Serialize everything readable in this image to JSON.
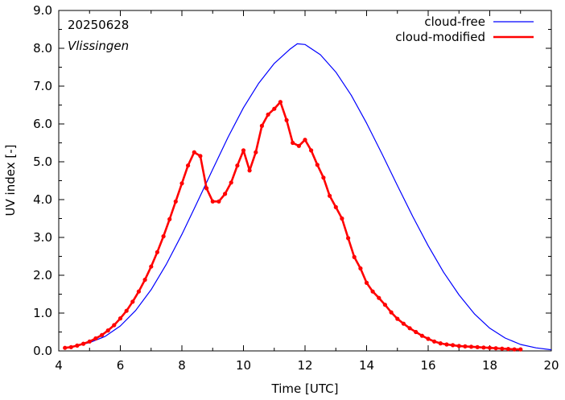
{
  "chart_data": {
    "type": "line",
    "xlabel": "Time  [UTC]",
    "ylabel": "UV index  [-]",
    "xlim": [
      4,
      20
    ],
    "ylim": [
      0,
      9
    ],
    "x_ticks": [
      4,
      6,
      8,
      10,
      12,
      14,
      16,
      18,
      20
    ],
    "y_ticks": [
      0.0,
      1.0,
      2.0,
      3.0,
      4.0,
      5.0,
      6.0,
      7.0,
      8.0,
      9.0
    ],
    "x_tick_labels": [
      "4",
      "6",
      "8",
      "10",
      "12",
      "14",
      "16",
      "18",
      "20"
    ],
    "y_tick_labels": [
      "0.0",
      "1.0",
      "2.0",
      "3.0",
      "4.0",
      "5.0",
      "6.0",
      "7.0",
      "8.0",
      "9.0"
    ],
    "annotations": [
      "20250628",
      "Vlissingen"
    ],
    "legend_position": "top-right",
    "grid": false,
    "series": [
      {
        "name": "cloud-free",
        "color": "#0000ff",
        "markers": false,
        "x": [
          4.2,
          4.5,
          5.0,
          5.5,
          6.0,
          6.5,
          7.0,
          7.5,
          8.0,
          8.5,
          9.0,
          9.5,
          10.0,
          10.5,
          11.0,
          11.5,
          11.75,
          12.0,
          12.5,
          13.0,
          13.5,
          14.0,
          14.5,
          15.0,
          15.5,
          16.0,
          16.5,
          17.0,
          17.5,
          18.0,
          18.5,
          19.0,
          19.5,
          20.0
        ],
        "y": [
          0.08,
          0.12,
          0.22,
          0.38,
          0.66,
          1.07,
          1.62,
          2.3,
          3.08,
          3.93,
          4.8,
          5.65,
          6.43,
          7.08,
          7.6,
          7.97,
          8.12,
          8.1,
          7.83,
          7.37,
          6.76,
          6.02,
          5.21,
          4.37,
          3.55,
          2.78,
          2.08,
          1.48,
          0.98,
          0.6,
          0.34,
          0.17,
          0.08,
          0.03
        ]
      },
      {
        "name": "cloud-modified",
        "color": "#ff0000",
        "markers": true,
        "x": [
          4.2,
          4.4,
          4.6,
          4.8,
          5.0,
          5.2,
          5.4,
          5.6,
          5.8,
          6.0,
          6.2,
          6.4,
          6.6,
          6.8,
          7.0,
          7.2,
          7.4,
          7.6,
          7.8,
          8.0,
          8.2,
          8.4,
          8.6,
          8.8,
          9.0,
          9.2,
          9.4,
          9.6,
          9.8,
          10.0,
          10.2,
          10.4,
          10.6,
          10.8,
          11.0,
          11.2,
          11.4,
          11.6,
          11.8,
          12.0,
          12.2,
          12.4,
          12.6,
          12.8,
          13.0,
          13.2,
          13.4,
          13.6,
          13.8,
          14.0,
          14.2,
          14.4,
          14.6,
          14.8,
          15.0,
          15.2,
          15.4,
          15.6,
          15.8,
          16.0,
          16.2,
          16.4,
          16.6,
          16.8,
          17.0,
          17.2,
          17.4,
          17.6,
          17.8,
          18.0,
          18.2,
          18.4,
          18.6,
          18.8,
          19.0
        ],
        "y": [
          0.08,
          0.1,
          0.14,
          0.19,
          0.25,
          0.33,
          0.42,
          0.54,
          0.68,
          0.86,
          1.06,
          1.3,
          1.57,
          1.88,
          2.23,
          2.61,
          3.03,
          3.48,
          3.95,
          4.43,
          4.9,
          5.25,
          5.15,
          4.3,
          3.95,
          3.95,
          4.15,
          4.45,
          4.9,
          5.3,
          4.77,
          5.25,
          5.95,
          6.25,
          6.4,
          6.58,
          6.1,
          5.5,
          5.42,
          5.58,
          5.3,
          4.92,
          4.58,
          4.1,
          3.8,
          3.5,
          2.98,
          2.48,
          2.18,
          1.8,
          1.57,
          1.4,
          1.22,
          1.02,
          0.85,
          0.72,
          0.6,
          0.5,
          0.4,
          0.32,
          0.25,
          0.2,
          0.17,
          0.15,
          0.13,
          0.12,
          0.11,
          0.1,
          0.09,
          0.08,
          0.07,
          0.06,
          0.05,
          0.04,
          0.04
        ]
      }
    ]
  }
}
